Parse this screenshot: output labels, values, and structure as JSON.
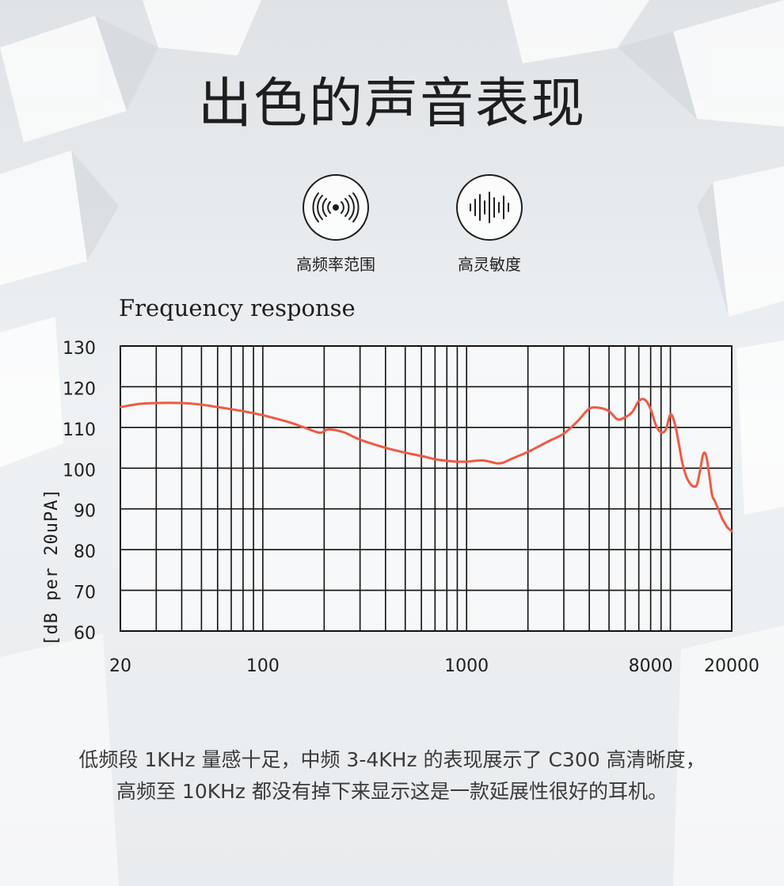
{
  "header": {
    "title": "出色的声音表现"
  },
  "features": [
    {
      "label": "高频率范围",
      "icon": "sound-waves-icon"
    },
    {
      "label": "高灵敏度",
      "icon": "sound-bars-icon"
    }
  ],
  "caption": {
    "line1": "低频段 1KHz 量感十足，中频 3-4KHz 的表现展示了 C300 高清晰度，",
    "line2": "高频至 10KHz 都没有掉下来显示这是一款延展性很好的耳机。"
  },
  "chart_data": {
    "type": "line",
    "title": "Frequency response",
    "xlabel": "",
    "ylabel": "[dB per 20uPA]",
    "x_scale": "log",
    "xlim": [
      20,
      20000
    ],
    "ylim": [
      60,
      130
    ],
    "x_ticks": [
      {
        "value": 20,
        "label": "20"
      },
      {
        "value": 100,
        "label": "100"
      },
      {
        "value": 1000,
        "label": "1000"
      },
      {
        "value": 8000,
        "label": "8000"
      },
      {
        "value": 20000,
        "label": "20000"
      }
    ],
    "y_ticks": [
      60,
      70,
      80,
      90,
      100,
      110,
      120,
      130
    ],
    "grid": true,
    "line_color": "#ef5a44",
    "series": [
      {
        "x": [
          20,
          25,
          30,
          40,
          50,
          60,
          80,
          100,
          130,
          160,
          190,
          210,
          250,
          300,
          400,
          500,
          600,
          700,
          800,
          900,
          1000,
          1100,
          1200,
          1300,
          1400,
          1500,
          1700,
          2000,
          2500,
          3000,
          3500,
          4000,
          4500,
          5000,
          5500,
          6000,
          6500,
          7000,
          7500,
          8000,
          8500,
          9000,
          9500,
          10000,
          10500,
          11000,
          11500,
          12000,
          12500,
          13000,
          13500,
          14000,
          14500,
          15000,
          15500,
          16000,
          16500,
          17000,
          17500,
          18000,
          18500,
          19000,
          19500,
          20000
        ],
        "y": [
          115,
          115.8,
          116,
          116,
          115.6,
          115,
          114,
          113,
          111.5,
          110,
          108.7,
          109.5,
          108.8,
          107,
          105,
          103.8,
          103,
          102.2,
          101.8,
          101.6,
          101.6,
          101.8,
          101.9,
          101.6,
          101.2,
          101.3,
          102.5,
          104,
          106.5,
          108.5,
          111.5,
          114.6,
          114.8,
          114,
          112,
          112.5,
          113.8,
          116.5,
          116.8,
          114.5,
          110.5,
          108.8,
          109.5,
          113.2,
          111,
          106,
          100.8,
          97.8,
          96.2,
          95.5,
          96,
          99.5,
          103.5,
          103,
          98.5,
          93.5,
          92,
          90.5,
          89,
          87.5,
          86.5,
          85.5,
          85,
          84.5
        ]
      }
    ]
  }
}
